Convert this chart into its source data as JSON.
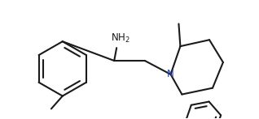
{
  "background_color": "#ffffff",
  "line_color": "#1a1a1a",
  "line_width": 1.5,
  "font_size": 8.5,
  "label_color": "#1a1a1a",
  "fig_width": 3.18,
  "fig_height": 1.47,
  "dpi": 100
}
